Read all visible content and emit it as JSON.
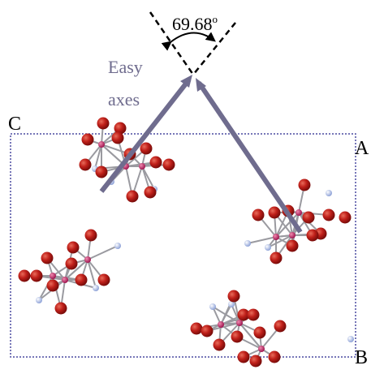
{
  "angle_label": {
    "value": "69.68",
    "degree": "o"
  },
  "axes_label": {
    "line1": "Easy",
    "line2": "axes"
  },
  "corner_labels": {
    "c": "C",
    "a": "A",
    "b": "B"
  }
}
